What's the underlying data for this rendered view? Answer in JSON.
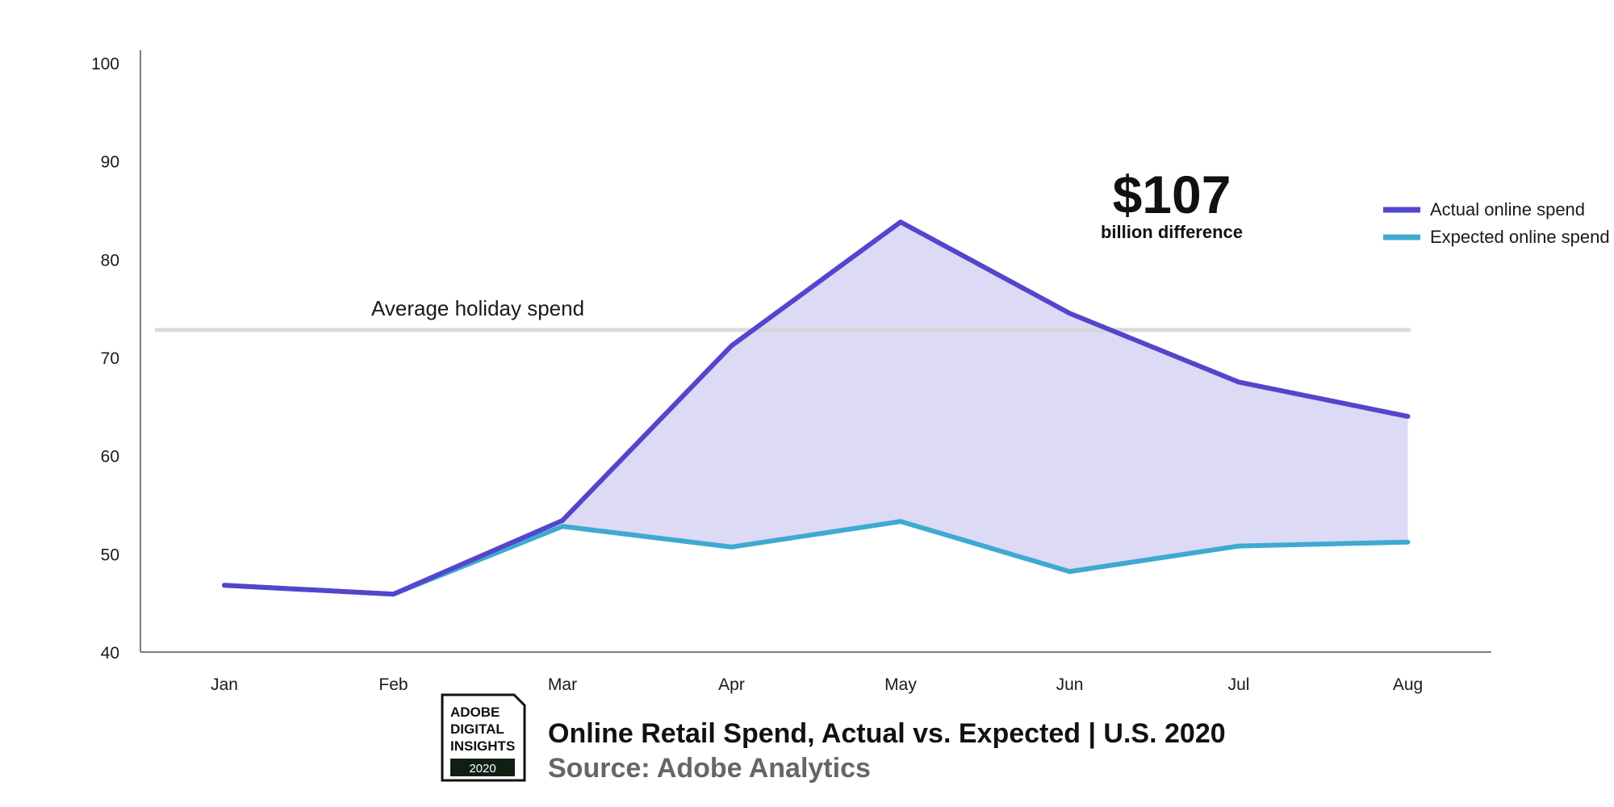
{
  "colors": {
    "actual": "#5346CC",
    "expected": "#3EAAD2",
    "fill": "#DCDAF5",
    "reference": "#D5D5D5",
    "axis": "#555555"
  },
  "chart_data": {
    "type": "line",
    "x": [
      "Jan",
      "Feb",
      "Mar",
      "Apr",
      "May",
      "Jun",
      "Jul",
      "Aug"
    ],
    "series": [
      {
        "name": "Actual online spend",
        "values": [
          46.8,
          45.9,
          53.4,
          71.2,
          83.8,
          74.5,
          67.5,
          64.0
        ],
        "color": "#5346CC"
      },
      {
        "name": "Expected online spend",
        "values": [
          46.8,
          45.9,
          52.8,
          50.7,
          53.3,
          48.2,
          50.8,
          51.2
        ],
        "color": "#3EAAD2"
      }
    ],
    "y_ticks": [
      "100",
      "90",
      "80",
      "70",
      "60",
      "50",
      "40"
    ],
    "ylim": [
      40,
      100
    ],
    "reference_line": {
      "label": "Average holiday spend",
      "value": 72.8
    },
    "annotation": {
      "value": "$107",
      "text": "billion difference"
    },
    "legend_position": "top-right",
    "grid": false
  },
  "footer": {
    "badge": {
      "line1": "ADOBE",
      "line2": "DIGITAL",
      "line3": "INSIGHTS",
      "year": "2020"
    },
    "title": "Online Retail Spend, Actual vs. Expected | U.S. 2020",
    "source": "Source: Adobe Analytics"
  }
}
